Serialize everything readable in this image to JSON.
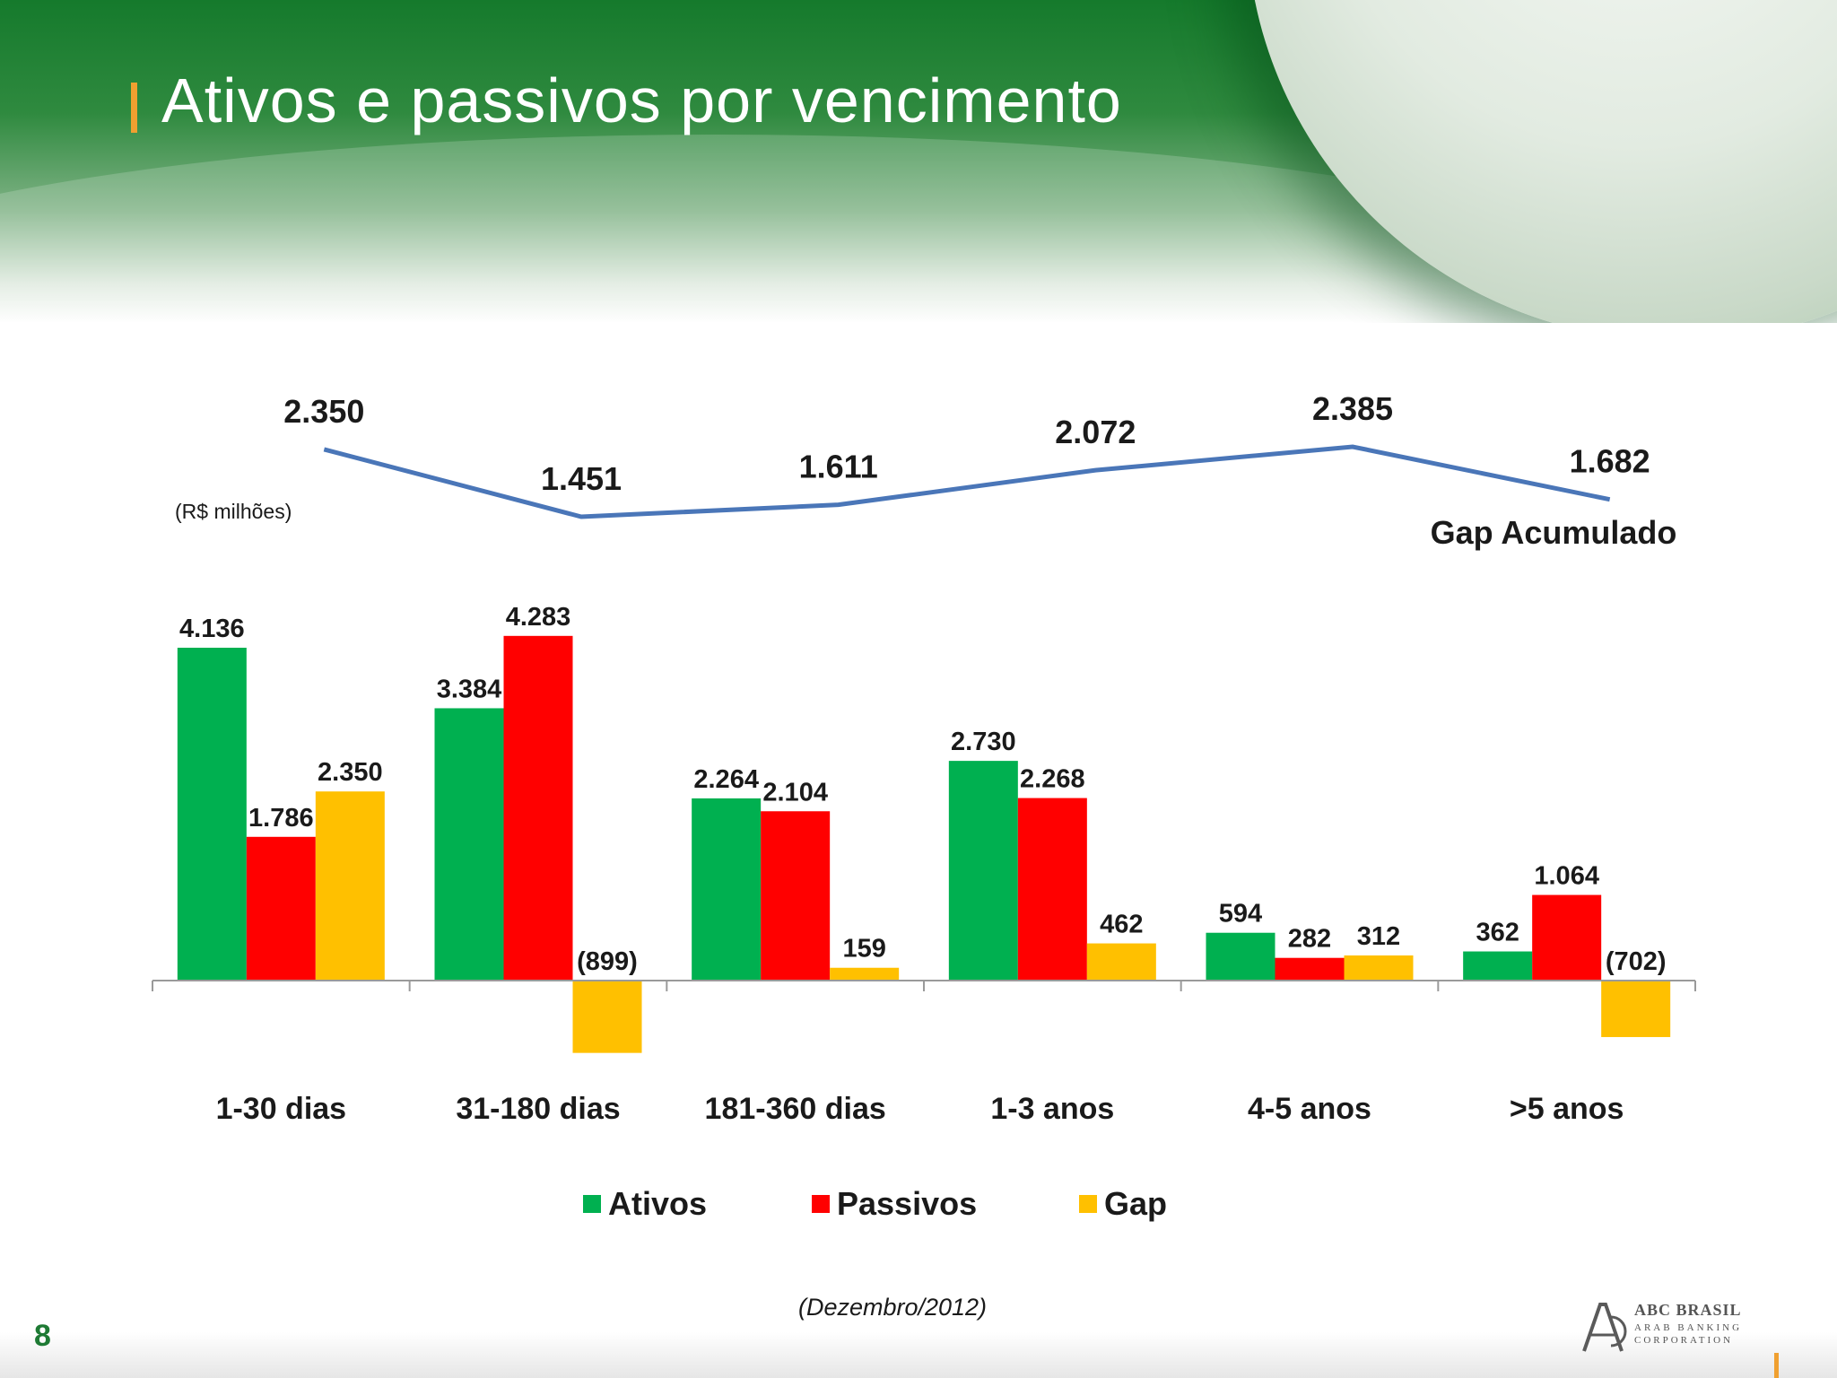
{
  "slide": {
    "title": "Ativos e passivos por vencimento",
    "page_number": "8",
    "footnote": "(Dezembro/2012)",
    "logo": {
      "name": "ABC BRASIL",
      "tagline_1": "ARAB BANKING",
      "tagline_2": "CORPORATION"
    }
  },
  "chart_data": {
    "type": "bar",
    "unit_note": "(R$ milhões)",
    "categories": [
      "1-30 dias",
      "31-180 dias",
      "181-360 dias",
      "1-3 anos",
      "4-5 anos",
      ">5 anos"
    ],
    "series": [
      {
        "name": "Ativos",
        "color": "#00b050",
        "values": [
          4136,
          3384,
          2264,
          2730,
          594,
          362
        ],
        "labels": [
          "4.136",
          "3.384",
          "2.264",
          "2.730",
          "594",
          "362"
        ]
      },
      {
        "name": "Passivos",
        "color": "#ff0000",
        "values": [
          1786,
          4283,
          2104,
          2268,
          282,
          1064
        ],
        "labels": [
          "1.786",
          "4.283",
          "2.104",
          "2.268",
          "282",
          "1.064"
        ]
      },
      {
        "name": "Gap",
        "color": "#ffc000",
        "values": [
          2350,
          -899,
          159,
          462,
          312,
          -702
        ],
        "labels": [
          "2.350",
          "(899)",
          "159",
          "462",
          "312",
          "(702)"
        ]
      }
    ],
    "line_series": {
      "name": "Gap Acumulado",
      "color": "#4a76b8",
      "values": [
        2350,
        1451,
        1611,
        2072,
        2385,
        1682
      ],
      "labels": [
        "2.350",
        "1.451",
        "1.611",
        "2.072",
        "2.385",
        "1.682"
      ]
    },
    "legend_position": "bottom",
    "grid": false
  }
}
